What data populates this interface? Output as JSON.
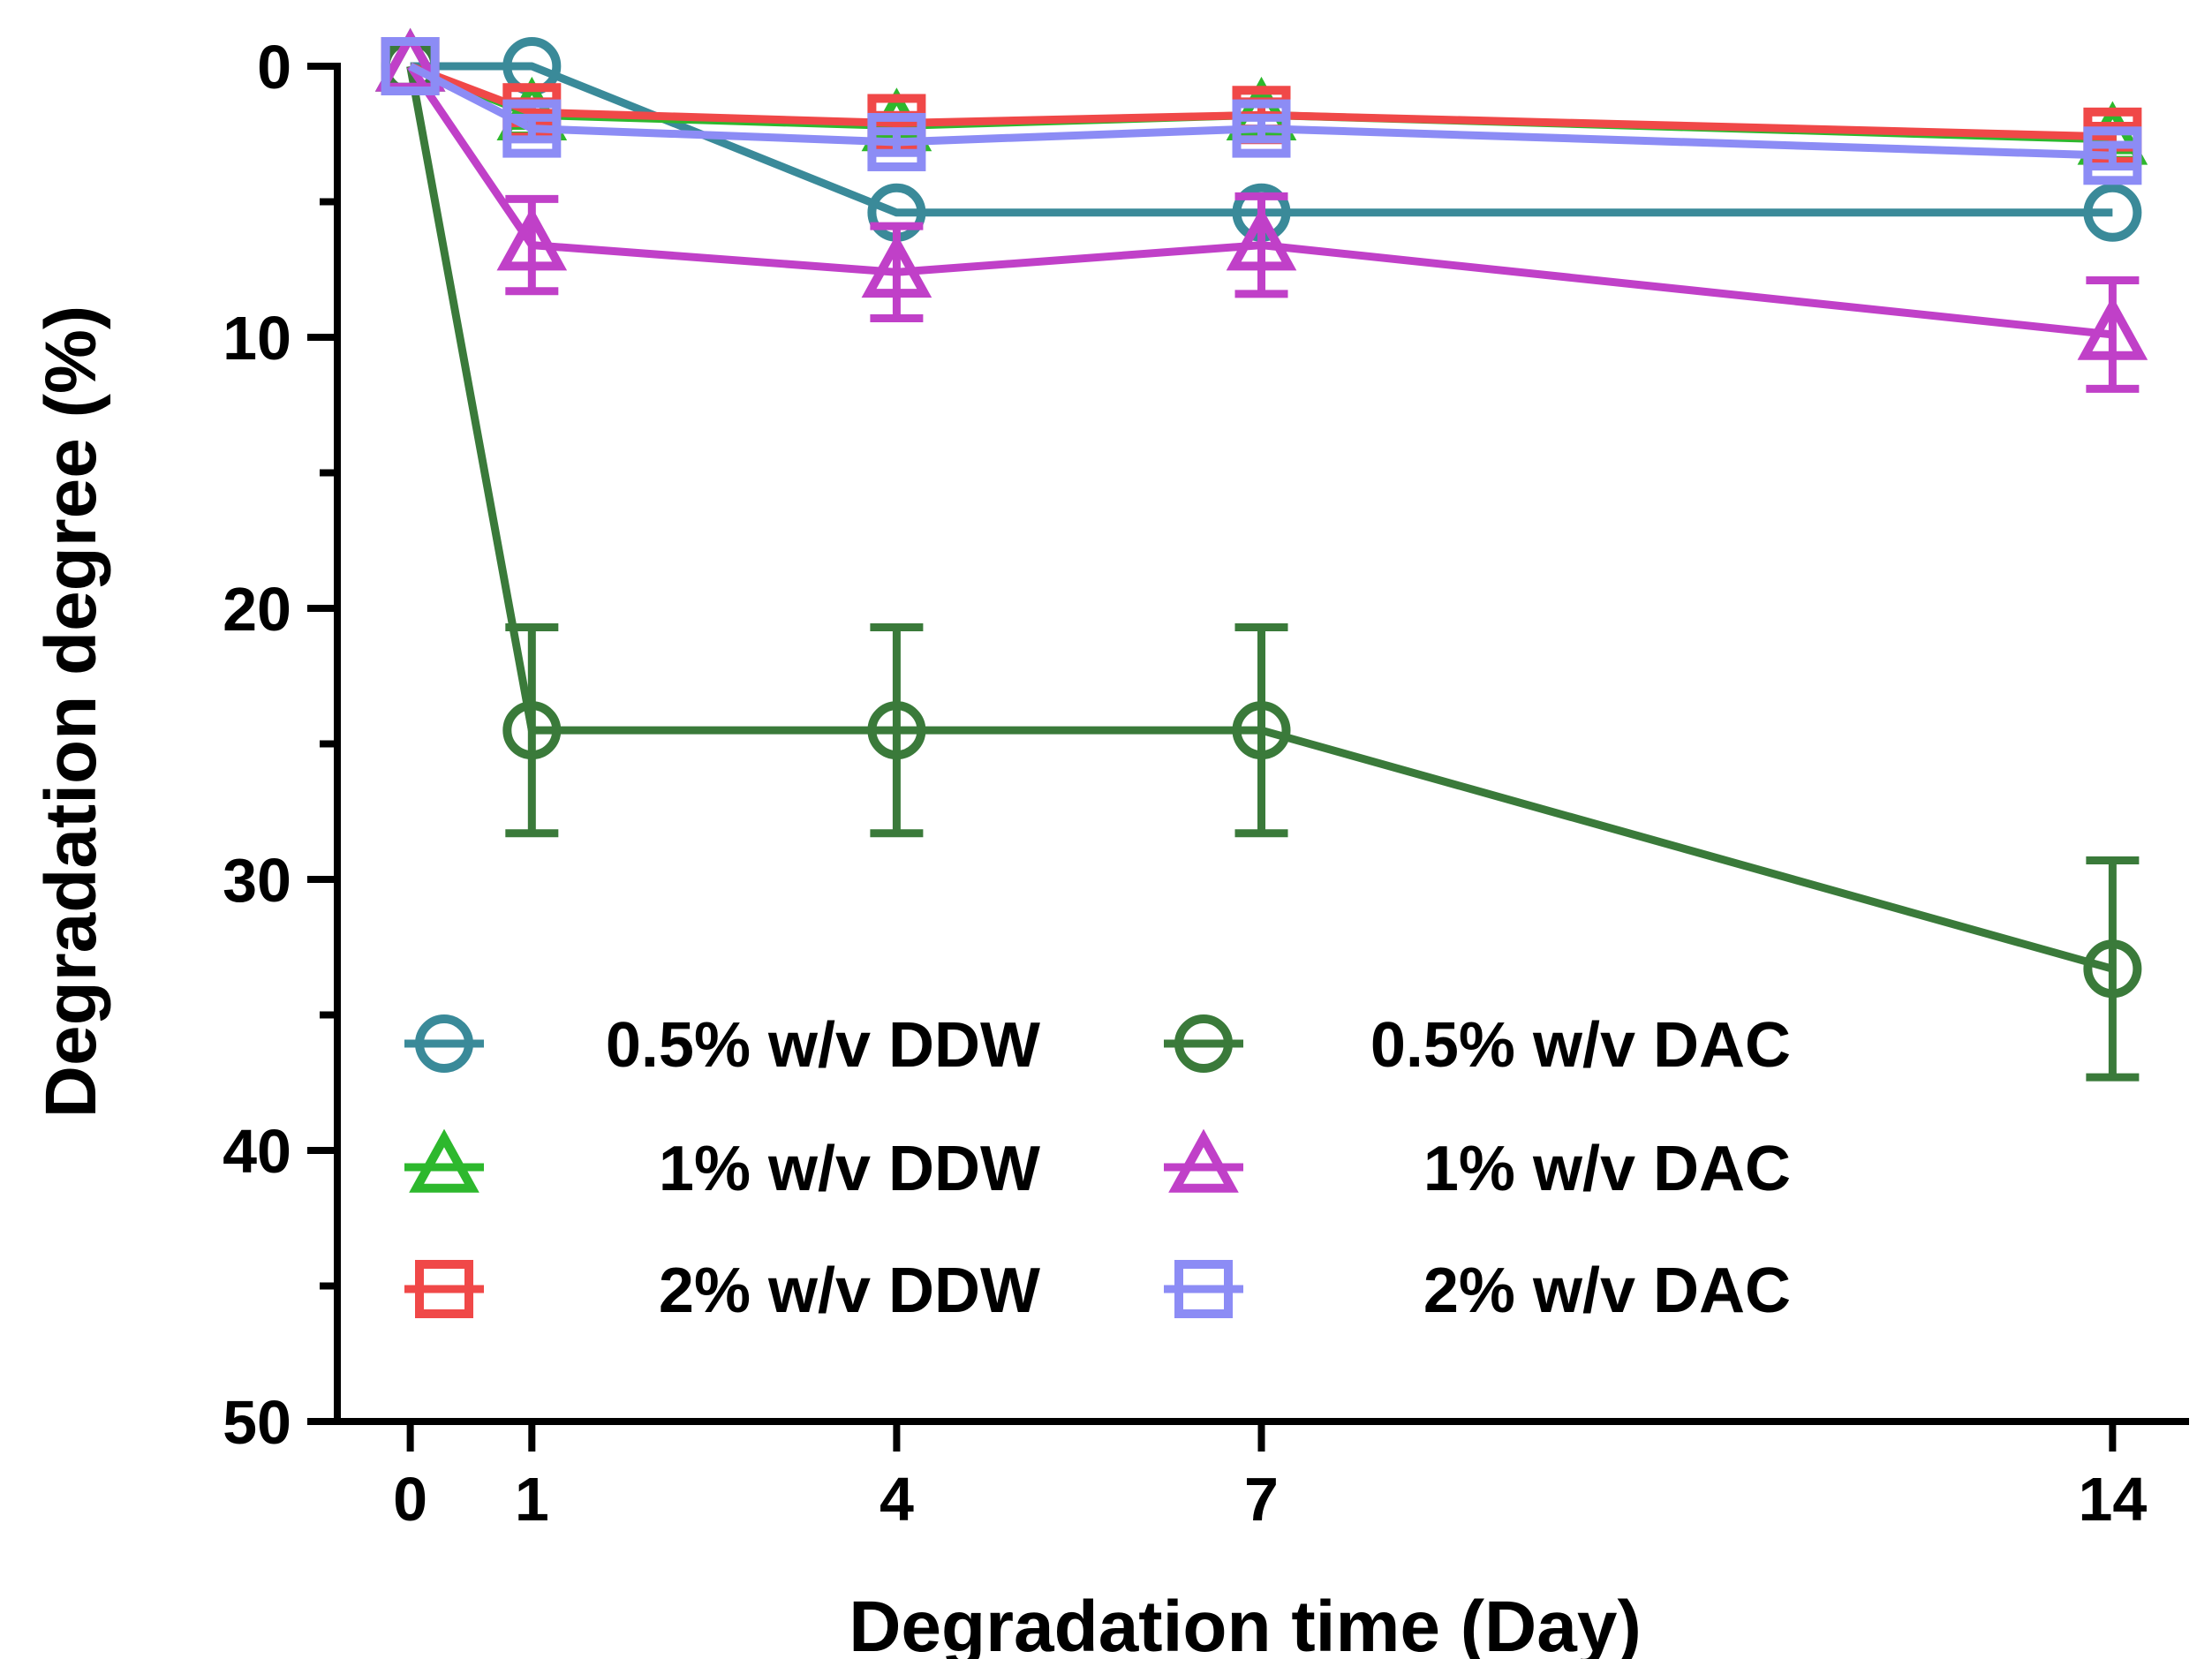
{
  "chart_data": {
    "type": "line",
    "title": "",
    "xlabel": "Degradation time (Day)",
    "ylabel": "Degradation degree (%)",
    "x": [
      0,
      1,
      4,
      7,
      14
    ],
    "xticks": [
      "0",
      "1",
      "4",
      "7",
      "14"
    ],
    "xlim": [
      -0.6,
      14.6
    ],
    "yticks": [
      "0",
      "10",
      "20",
      "30",
      "40",
      "50"
    ],
    "ylim": [
      0,
      50
    ],
    "y_inverted": true,
    "grid": false,
    "legend_position": "bottom-left",
    "series": [
      {
        "name": "0.5% w/v DDW",
        "marker": "circle",
        "color": "#3a8a99",
        "values": [
          0,
          0,
          5.4,
          5.4,
          5.4
        ],
        "errors": [
          0,
          0,
          0,
          0,
          0
        ]
      },
      {
        "name": "1% w/v DDW",
        "marker": "triangle",
        "color": "#2db82d",
        "values": [
          0,
          1.8,
          2.2,
          1.8,
          2.7
        ],
        "errors": [
          0,
          0.4,
          0.3,
          0.9,
          0.4
        ]
      },
      {
        "name": "2% w/v DDW",
        "marker": "square",
        "color": "#f04848",
        "values": [
          0,
          1.7,
          2.1,
          1.8,
          2.6
        ],
        "errors": [
          0,
          0.4,
          0.3,
          0.5,
          0.4
        ]
      },
      {
        "name": "0.5% w/v DAC",
        "marker": "circle",
        "color": "#3a7a3a",
        "values": [
          0,
          24.5,
          24.5,
          24.5,
          33.3
        ],
        "errors": [
          0,
          3.8,
          3.8,
          3.8,
          4.0
        ]
      },
      {
        "name": "1% w/v DAC",
        "marker": "triangle",
        "color": "#c040c8",
        "values": [
          0,
          6.6,
          7.6,
          6.6,
          9.9
        ],
        "errors": [
          0,
          1.7,
          1.7,
          1.8,
          2.0
        ]
      },
      {
        "name": "2% w/v DAC",
        "marker": "square",
        "color": "#8c8cf5",
        "values": [
          0,
          2.3,
          2.8,
          2.3,
          3.3
        ],
        "errors": [
          0,
          0.4,
          0.4,
          0.4,
          0.4
        ]
      }
    ]
  }
}
